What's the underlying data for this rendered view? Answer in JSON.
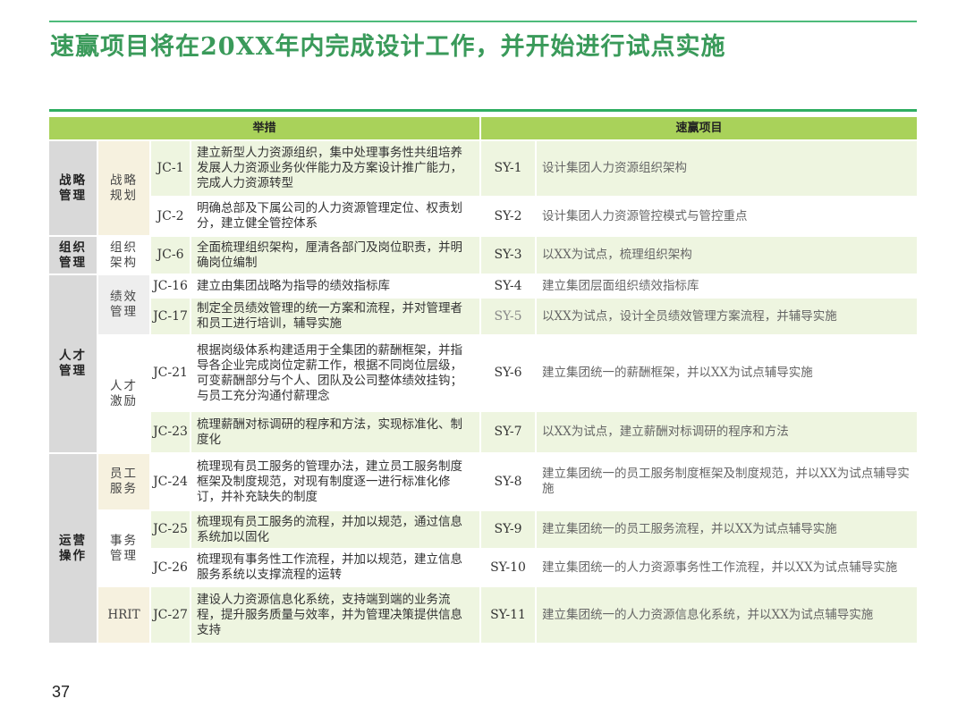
{
  "title": "速赢项目将在20XX年内完成设计工作，并开始进行试点实施",
  "headers": {
    "measures": "举措",
    "quick_wins": "速赢项目"
  },
  "categories": [
    "战略管理",
    "组织管理",
    "人才管理",
    "运营操作"
  ],
  "subcategories": [
    "战略规划",
    "组织架构",
    "绩效管理",
    "人才激励",
    "员工服务",
    "事务管理",
    "HRIT"
  ],
  "rows": [
    {
      "jc": "JC-1",
      "measure": "建立新型人力资源组织，集中处理事务性共组培养发展人力资源业务伙伴能力及方案设计推广能力，完成人力资源转型",
      "sy": "SY-1",
      "project": "设计集团人力资源组织架构"
    },
    {
      "jc": "JC-2",
      "measure": "明确总部及下属公司的人力资源管理定位、权责划分，建立健全管控体系",
      "sy": "SY-2",
      "project": "设计集团人力资源管控模式与管控重点"
    },
    {
      "jc": "JC-6",
      "measure": "全面梳理组织架构，厘清各部门及岗位职责，并明确岗位编制",
      "sy": "SY-3",
      "project": "以XX为试点，梳理组织架构"
    },
    {
      "jc": "JC-16",
      "measure": "建立由集团战略为指导的绩效指标库",
      "sy": "SY-4",
      "project": "建立集团层面组织绩效指标库"
    },
    {
      "jc": "JC-17",
      "measure": "制定全员绩效管理的统一方案和流程，并对管理者和员工进行培训，辅导实施",
      "sy": "SY-5",
      "project": "以XX为试点，设计全员绩效管理方案流程，并辅导实施"
    },
    {
      "jc": "JC-21",
      "measure": "根据岗级体系构建适用于全集团的薪酬框架，并指导各企业完成岗位定薪工作，根据不同岗位层级，可变薪酬部分与个人、团队及公司整体绩效挂钩；与员工充分沟通付薪理念",
      "sy": "SY-6",
      "project": "建立集团统一的薪酬框架，并以XX为试点辅导实施"
    },
    {
      "jc": "JC-23",
      "measure": "梳理薪酬对标调研的程序和方法，实现标准化、制度化",
      "sy": "SY-7",
      "project": "以XX为试点，建立薪酬对标调研的程序和方法"
    },
    {
      "jc": "JC-24",
      "measure": "梳理现有员工服务的管理办法，建立员工服务制度框架及制度规范，对现有制度逐一进行标准化修订，并补充缺失的制度",
      "sy": "SY-8",
      "project": "建立集团统一的员工服务制度框架及制度规范，并以XX为试点辅导实施"
    },
    {
      "jc": "JC-25",
      "measure": "梳理现有员工服务的流程，并加以规范，通过信息系统加以固化",
      "sy": "SY-9",
      "project": "建立集团统一的员工服务流程，并以XX为试点辅导实施"
    },
    {
      "jc": "JC-26",
      "measure": "梳理现有事务性工作流程，并加以规范，建立信息服务系统以支撑流程的运转",
      "sy": "SY-10",
      "project": "建立集团统一的人力资源事务性工作流程，并以XX为试点辅导实施"
    },
    {
      "jc": "JC-27",
      "measure": "建设人力资源信息化系统，支持端到端的业务流程，提升服务质量与效率，并为管理决策提供信息支持",
      "sy": "SY-11",
      "project": "建立集团统一的人力资源信息化系统，并以XX为试点辅导实施"
    }
  ],
  "page_number": "37",
  "colors": {
    "title": "#3a9a5a",
    "header": "#a9d25a",
    "row_green": "#eef5e0",
    "category": "#d9d9d9",
    "beige": "#f6f1df"
  }
}
